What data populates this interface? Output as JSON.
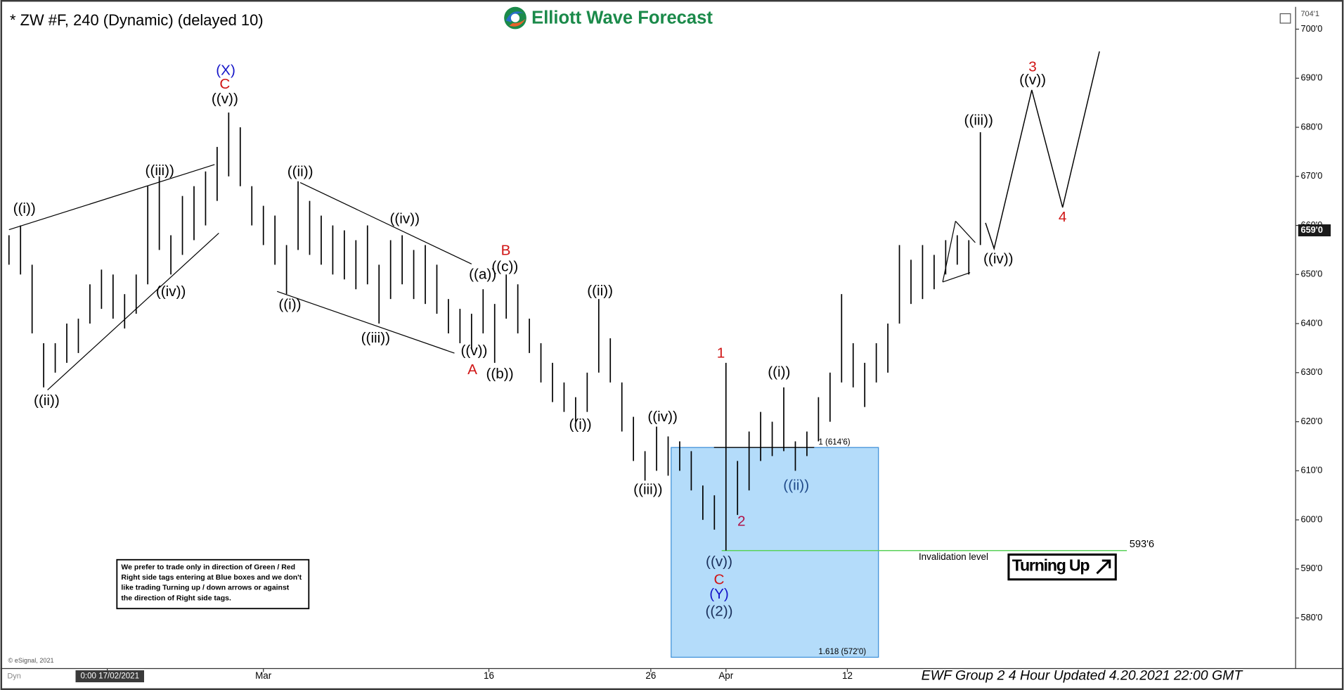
{
  "chart_data": {
    "type": "hilo",
    "title": "* ZW #F, 240 (Dynamic) (delayed 10)",
    "logo": "Elliott Wave Forecast",
    "footer": "EWF Group 2 4 Hour Updated 4.20.2021 22:00 GMT",
    "copyright": "© eSignal, 2021",
    "mode": "Dyn",
    "note": [
      "We prefer to trade only in direction of Green / Red",
      "Right side tags entering at Blue boxes and we don't",
      "like trading Turning up / down arrows or against",
      "the direction of Right side tags."
    ],
    "signal": "Turning Up",
    "color": "#000000",
    "xlim": [
      -0.74,
      111.26
    ],
    "ylim": [
      570,
      704.125
    ],
    "xticks": [
      {
        "value": 8.5,
        "label": "0:00 17/02/2021"
      },
      {
        "value": 22,
        "label": "Mar"
      },
      {
        "value": 41.5,
        "label": "16"
      },
      {
        "value": 55.5,
        "label": "26"
      },
      {
        "value": 62,
        "label": "Apr"
      },
      {
        "value": 72.5,
        "label": "12"
      }
    ],
    "yticks": [
      {
        "value": 580,
        "label": "580'0"
      },
      {
        "value": 590,
        "label": "590'0"
      },
      {
        "value": 600,
        "label": "600'0"
      },
      {
        "value": 610,
        "label": "610'0"
      },
      {
        "value": 620,
        "label": "620'0"
      },
      {
        "value": 630,
        "label": "630'0"
      },
      {
        "value": 640,
        "label": "640'0"
      },
      {
        "value": 650,
        "label": "650'0"
      },
      {
        "value": 660,
        "label": "660'0"
      },
      {
        "value": 670,
        "label": "670'0"
      },
      {
        "value": 680,
        "label": "680'0"
      },
      {
        "value": 690,
        "label": "690'0"
      },
      {
        "value": 700,
        "label": "700'0"
      }
    ],
    "axis_top": {
      "value": 704.125,
      "label": "704'1"
    },
    "last_price": {
      "value": 659,
      "label": "659'0"
    },
    "box_levels": [
      {
        "value": 614.75,
        "label": "1 (614'6)"
      },
      {
        "value": 572,
        "label": "1.618 (572'0)"
      }
    ],
    "invalidation": {
      "value": 593.75,
      "label": "593'6",
      "text": "Invalidation level"
    },
    "x": [
      0,
      1,
      2,
      3,
      4,
      5,
      6,
      7,
      8,
      9,
      10,
      11,
      12,
      13,
      14,
      15,
      16,
      17,
      18,
      19,
      20,
      21,
      22,
      23,
      24,
      25,
      26,
      27,
      28,
      29,
      30,
      31,
      32,
      33,
      34,
      35,
      36,
      37,
      38,
      39,
      40,
      41,
      42,
      43,
      44,
      45,
      46,
      47,
      48,
      49,
      50,
      51,
      52,
      53,
      54,
      55,
      56,
      57,
      58,
      59,
      60,
      61,
      62,
      63,
      64,
      65,
      66,
      67,
      68,
      69,
      70,
      71,
      72,
      73,
      74,
      75,
      76,
      77,
      78,
      79,
      80,
      81,
      82,
      83,
      84
    ],
    "highs": [
      658,
      660,
      652,
      636,
      636,
      640,
      641,
      648,
      651,
      650,
      646,
      650,
      668,
      670,
      658,
      666,
      668,
      671,
      676,
      683,
      680,
      668,
      664,
      662,
      656,
      669,
      665,
      662,
      660,
      659,
      657,
      660,
      652,
      657,
      658,
      655,
      656,
      652,
      645,
      643,
      642,
      647,
      644,
      650,
      648,
      641,
      636,
      632,
      628,
      625,
      630,
      645,
      637,
      628,
      621,
      614,
      619,
      617,
      616,
      614,
      607,
      605,
      632,
      612,
      618,
      622,
      620,
      627,
      616,
      618,
      625,
      630,
      646,
      636,
      632,
      636,
      640,
      656,
      653,
      656,
      654,
      657,
      658,
      657,
      679
    ],
    "lows": [
      652,
      650,
      638,
      627,
      630,
      632,
      634,
      640,
      643,
      641,
      639,
      642,
      648,
      655,
      650,
      654,
      657,
      660,
      665,
      670,
      668,
      660,
      656,
      652,
      646,
      655,
      654,
      652,
      650,
      649,
      647,
      648,
      640,
      645,
      648,
      645,
      644,
      642,
      638,
      636,
      635,
      638,
      632,
      641,
      638,
      634,
      628,
      624,
      622,
      620,
      622,
      630,
      628,
      618,
      612,
      608,
      610,
      609,
      610,
      606,
      600,
      598,
      593.75,
      601,
      606,
      612,
      613,
      614,
      610,
      613,
      616,
      620,
      628,
      627,
      623,
      628,
      630,
      640,
      644,
      645,
      647,
      650,
      652,
      650,
      656
    ],
    "wave_labels": [
      {
        "text": "((i))",
        "color": "#000000"
      },
      {
        "text": "((ii))",
        "color": "#000000"
      },
      {
        "text": "((iii))",
        "color": "#000000"
      },
      {
        "text": "((iv))",
        "color": "#000000"
      },
      {
        "text": "((v))",
        "color": "#000000"
      },
      {
        "text": "C",
        "color": "#d01515"
      },
      {
        "text": "(X)",
        "color": "#1515c8"
      },
      {
        "text": "((ii))",
        "color": "#000000"
      },
      {
        "text": "((i))",
        "color": "#000000"
      },
      {
        "text": "((iii))",
        "color": "#000000"
      },
      {
        "text": "((iv))",
        "color": "#000000"
      },
      {
        "text": "((v))",
        "color": "#000000"
      },
      {
        "text": "A",
        "color": "#d01515"
      },
      {
        "text": "((a))",
        "color": "#000000"
      },
      {
        "text": "((c))",
        "color": "#000000"
      },
      {
        "text": "B",
        "color": "#d01515"
      },
      {
        "text": "((b))",
        "color": "#000000"
      },
      {
        "text": "((ii))",
        "color": "#000000"
      },
      {
        "text": "((i))",
        "color": "#000000"
      },
      {
        "text": "((iv))",
        "color": "#000000"
      },
      {
        "text": "((iii))",
        "color": "#000000"
      },
      {
        "text": "1",
        "color": "#d01515"
      },
      {
        "text": "((v))",
        "color": "#1a2f5a"
      },
      {
        "text": "C",
        "color": "#d01515"
      },
      {
        "text": "(Y)",
        "color": "#1515c8"
      },
      {
        "text": "((2))",
        "color": "#1a2f5a"
      },
      {
        "text": "2",
        "color": "#b0154a"
      },
      {
        "text": "((i))",
        "color": "#000000"
      },
      {
        "text": "((ii))",
        "color": "#1f4a8a"
      },
      {
        "text": "((iii))",
        "color": "#000000"
      },
      {
        "text": "((iv))",
        "color": "#000000"
      },
      {
        "text": "3",
        "color": "#d01515"
      },
      {
        "text": "((v))",
        "color": "#000000"
      },
      {
        "text": "4",
        "color": "#d01515"
      }
    ]
  }
}
